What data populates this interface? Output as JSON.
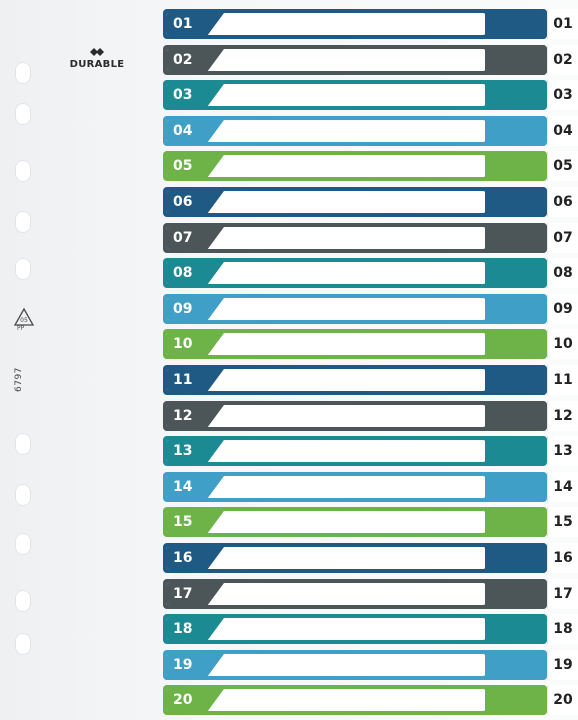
{
  "brand": {
    "logo_text": "DURABLE",
    "recycle_code": "05",
    "recycle_material": "PP",
    "product_code": "6797"
  },
  "colors": {
    "navy": "#1f5a85",
    "slate": "#4c5659",
    "teal": "#1b8a93",
    "sky": "#3f9fc6",
    "green": "#6db347"
  },
  "tabs": [
    {
      "label": "01",
      "color": "navy"
    },
    {
      "label": "02",
      "color": "slate"
    },
    {
      "label": "03",
      "color": "teal"
    },
    {
      "label": "04",
      "color": "sky"
    },
    {
      "label": "05",
      "color": "green"
    },
    {
      "label": "06",
      "color": "navy"
    },
    {
      "label": "07",
      "color": "slate"
    },
    {
      "label": "08",
      "color": "teal"
    },
    {
      "label": "09",
      "color": "sky"
    },
    {
      "label": "10",
      "color": "green"
    },
    {
      "label": "11",
      "color": "navy"
    },
    {
      "label": "12",
      "color": "slate"
    },
    {
      "label": "13",
      "color": "teal"
    },
    {
      "label": "14",
      "color": "sky"
    },
    {
      "label": "15",
      "color": "green"
    },
    {
      "label": "16",
      "color": "navy"
    },
    {
      "label": "17",
      "color": "slate"
    },
    {
      "label": "18",
      "color": "teal"
    },
    {
      "label": "19",
      "color": "sky"
    },
    {
      "label": "20",
      "color": "green"
    }
  ]
}
